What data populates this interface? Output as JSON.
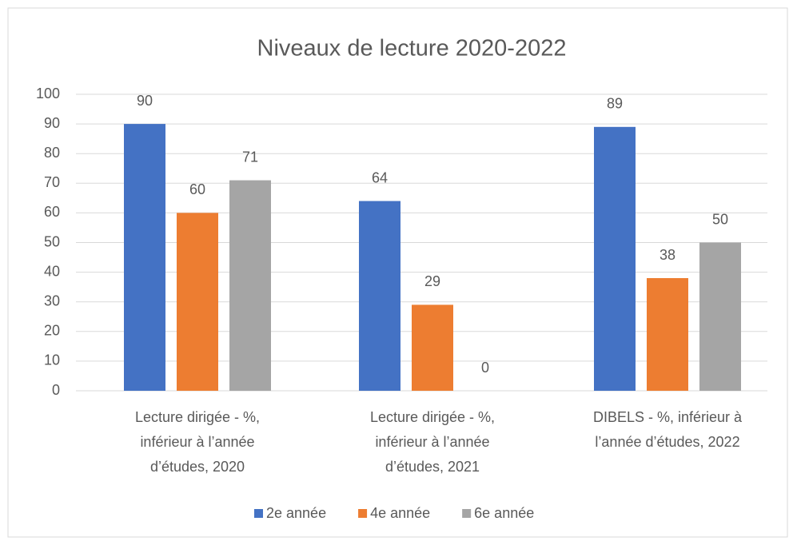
{
  "chart_data": {
    "type": "bar",
    "title": "Niveaux de lecture 2020-2022",
    "categories": [
      [
        "Lecture dirigée - %,",
        "inférieur à l’année",
        "d’études, 2020"
      ],
      [
        "Lecture dirigée - %,",
        "inférieur à l’année",
        "d’études, 2021"
      ],
      [
        "DIBELS - %, inférieur à",
        "l’année d’études, 2022"
      ]
    ],
    "series": [
      {
        "name": "2e année",
        "color": "#4472c4",
        "values": [
          90,
          64,
          89
        ]
      },
      {
        "name": "4e année",
        "color": "#ed7d31",
        "values": [
          60,
          29,
          38
        ]
      },
      {
        "name": "6e année",
        "color": "#a5a5a5",
        "values": [
          71,
          0,
          50
        ]
      }
    ],
    "ylim": [
      0,
      100
    ],
    "yticks": [
      0,
      10,
      20,
      30,
      40,
      50,
      60,
      70,
      80,
      90,
      100
    ],
    "grid": true,
    "legend": "bottom"
  }
}
